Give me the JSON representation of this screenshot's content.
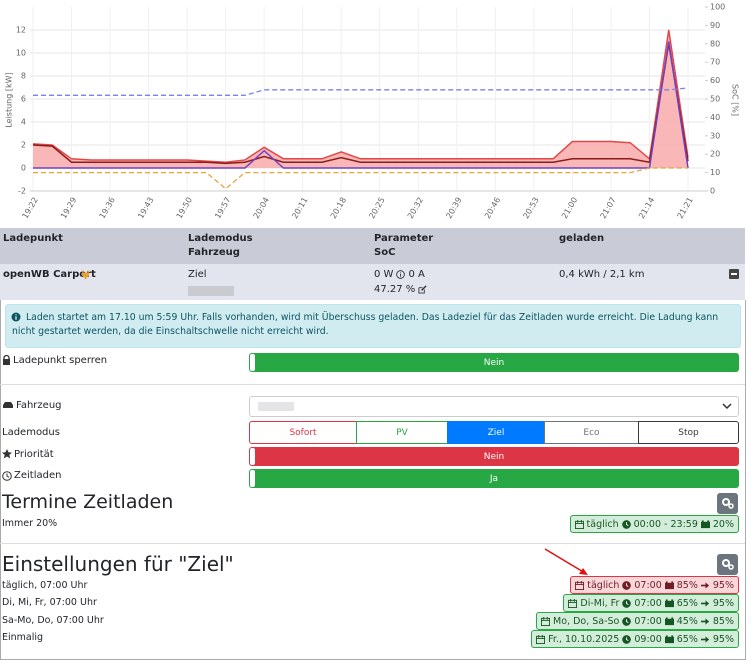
{
  "chart_data": {
    "type": "line",
    "y_label": "Leistung [kW]",
    "y2_label": "SoC [%]",
    "categories": [
      "19:22",
      null,
      "19:29",
      null,
      "19:36",
      null,
      "19:43",
      null,
      "19:50",
      null,
      "19:57",
      null,
      "20:04",
      null,
      "20:11",
      null,
      "20:18",
      null,
      "20:25",
      null,
      "20:32",
      null,
      "20:39",
      null,
      "20:46",
      null,
      "20:53",
      null,
      "21:00",
      null,
      "21:07",
      null,
      "21:14",
      null,
      "21:21"
    ],
    "series": [
      {
        "color": "#e34848",
        "fill": "#f9aaaa",
        "values": [
          2.1,
          2.0,
          0.8,
          0.7,
          0.7,
          0.7,
          0.7,
          0.7,
          0.7,
          0.6,
          0.5,
          0.7,
          1.8,
          0.8,
          0.8,
          0.8,
          1.4,
          0.8,
          0.8,
          0.8,
          0.8,
          0.8,
          0.8,
          0.8,
          0.8,
          0.8,
          0.8,
          0.8,
          2.3,
          2.3,
          2.3,
          2.2,
          0.8,
          12,
          0.9
        ]
      },
      {
        "color": "#8b1c1c",
        "values": [
          2.0,
          1.9,
          0.5,
          0.5,
          0.5,
          0.5,
          0.5,
          0.5,
          0.5,
          0.5,
          0.4,
          0.5,
          1.0,
          0.5,
          0.5,
          0.5,
          0.9,
          0.5,
          0.5,
          0.5,
          0.5,
          0.5,
          0.5,
          0.5,
          0.5,
          0.5,
          0.5,
          0.5,
          0.8,
          0.8,
          0.8,
          0.8,
          0.5,
          10.8,
          0.6
        ]
      },
      {
        "color": "#6f42c1",
        "values": [
          0,
          0,
          0,
          0,
          0,
          0,
          0,
          0,
          0,
          0,
          0,
          0,
          1.5,
          0,
          0,
          0,
          0,
          0,
          0,
          0,
          0,
          0,
          0,
          0,
          0,
          0,
          0,
          0,
          0,
          0,
          0,
          0,
          0,
          11,
          0
        ]
      },
      {
        "color": "#e8a33d",
        "dashed": true,
        "values": [
          -0.4,
          -0.4,
          -0.4,
          -0.4,
          -0.4,
          -0.4,
          -0.4,
          -0.4,
          -0.4,
          -0.4,
          -1.8,
          -0.4,
          -0.4,
          -0.4,
          -0.4,
          -0.4,
          -0.4,
          -0.4,
          -0.4,
          -0.4,
          -0.4,
          -0.4,
          -0.4,
          -0.4,
          -0.4,
          -0.4,
          -0.4,
          -0.4,
          -0.4,
          -0.4,
          -0.4,
          -0.4,
          0,
          0,
          0
        ]
      },
      {
        "color": "#7b80ee",
        "dashed": true,
        "axis": "y2",
        "values": [
          52,
          52,
          52,
          52,
          52,
          52,
          52,
          52,
          52,
          52,
          52,
          52,
          55,
          55,
          55,
          55,
          55,
          55,
          55,
          55,
          55,
          55,
          55,
          55,
          55,
          55,
          55,
          55,
          55,
          55,
          55,
          55,
          55,
          55,
          56
        ]
      }
    ],
    "ylim": [
      -2,
      14
    ],
    "yticks": [
      -2,
      0,
      2,
      4,
      6,
      8,
      10,
      12
    ],
    "y2lim": [
      0,
      100
    ],
    "y2ticks": [
      0,
      10,
      20,
      30,
      40,
      50,
      60,
      70,
      80,
      90,
      100
    ],
    "grid": true
  },
  "table": {
    "header": [
      "Ladepunkt",
      "Lademodus",
      "Fahrzeug",
      "Parameter",
      "SoC",
      "geladen"
    ],
    "row": {
      "name": "openWB Carport",
      "mode": "Ziel",
      "power": "0 W",
      "current": "0 A",
      "soc": "47.27 %",
      "charged": "0,4 kWh / 2,1 km"
    }
  },
  "info": "Laden startet am 17.10 um 5:59 Uhr. Falls vorhanden, wird mit Überschuss geladen. Das Ladeziel für das Zeitladen wurde erreicht. Die Ladung kann nicht gestartet werden, da die Einschaltschwelle nicht erreicht wird.",
  "controls": {
    "lock_label": "Ladepunkt sperren",
    "lock_value": "Nein",
    "vehicle_label": "Fahrzeug",
    "mode_label": "Lademodus",
    "modes": [
      "Sofort",
      "PV",
      "Ziel",
      "Eco",
      "Stop"
    ],
    "priority_label": "Priorität",
    "priority_value": "Nein",
    "timed_label": "Zeitladen",
    "timed_value": "Ja"
  },
  "schedule": {
    "title": "Termine Zeitladen",
    "items": [
      "Immer 20%"
    ],
    "badge": {
      "day": "täglich",
      "time": "00:00 - 23:59",
      "soc": "20%"
    }
  },
  "targets": {
    "title": "Einstellungen für \"Ziel\"",
    "items": [
      "täglich, 07:00 Uhr",
      "Di, Mi, Fr, 07:00 Uhr",
      "Sa-Mo, Do, 07:00 Uhr",
      "Einmalig"
    ],
    "badges": [
      {
        "day": "täglich",
        "time": "07:00",
        "from": "85%",
        "to": "95%"
      },
      {
        "day": "Di-Mi, Fr",
        "time": "07:00",
        "from": "65%",
        "to": "95%"
      },
      {
        "day": "Mo, Do, Sa-So",
        "time": "07:00",
        "from": "45%",
        "to": "85%"
      },
      {
        "day": "Fr., 10.10.2025",
        "time": "09:00",
        "from": "65%",
        "to": "95%"
      }
    ]
  }
}
